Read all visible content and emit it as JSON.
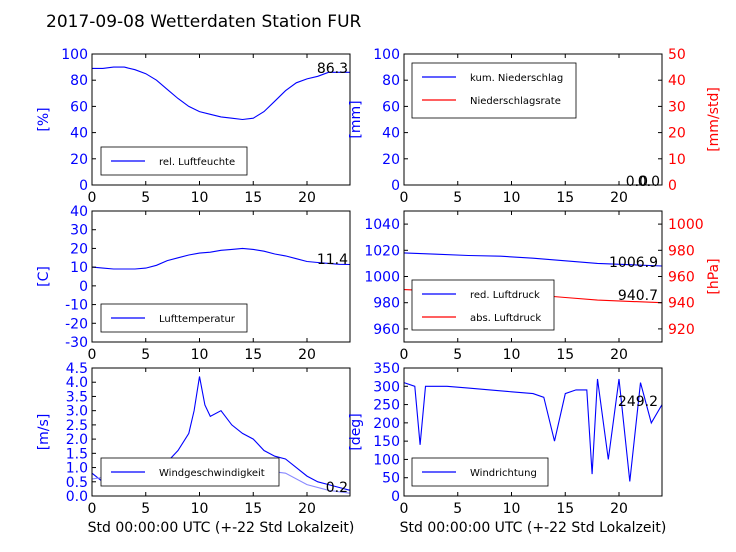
{
  "title": "2017-09-08 Wetterdaten Station FUR",
  "colors": {
    "primary": "#0000ff",
    "secondary": "#ff0000",
    "light": "#8888ff",
    "axis": "#000000"
  },
  "chart_data": [
    {
      "type": "line",
      "xlim": [
        0,
        24
      ],
      "x_ticks": [
        "0",
        "5",
        "10",
        "15",
        "20"
      ],
      "ylabel": "[%]",
      "ylim": [
        0,
        100
      ],
      "y_ticks": [
        "0",
        "20",
        "40",
        "60",
        "80",
        "100"
      ],
      "last_value": "86.3",
      "legend_placement": "lower-left",
      "series": [
        {
          "name": "rel. Luftfeuchte",
          "color": "#0000ff",
          "points": [
            [
              0,
              89
            ],
            [
              1,
              89
            ],
            [
              2,
              90
            ],
            [
              3,
              90
            ],
            [
              4,
              88
            ],
            [
              5,
              85
            ],
            [
              6,
              80
            ],
            [
              7,
              73
            ],
            [
              8,
              66
            ],
            [
              9,
              60
            ],
            [
              10,
              56
            ],
            [
              11,
              54
            ],
            [
              12,
              52
            ],
            [
              13,
              51
            ],
            [
              14,
              50
            ],
            [
              15,
              51
            ],
            [
              16,
              56
            ],
            [
              17,
              64
            ],
            [
              18,
              72
            ],
            [
              19,
              78
            ],
            [
              20,
              81
            ],
            [
              21,
              83
            ],
            [
              22,
              86
            ],
            [
              23,
              86
            ],
            [
              24,
              86
            ]
          ]
        }
      ]
    },
    {
      "type": "line",
      "xlim": [
        0,
        24
      ],
      "x_ticks": [
        "0",
        "5",
        "10",
        "15",
        "20"
      ],
      "ylabel": "[mm]",
      "ylim": [
        0,
        100
      ],
      "y_ticks": [
        "0",
        "20",
        "40",
        "60",
        "80",
        "100"
      ],
      "y2label": "[mm/std]",
      "y2lim": [
        0,
        50
      ],
      "y2_ticks": [
        "0",
        "10",
        "20",
        "30",
        "40",
        "50"
      ],
      "last_values": [
        "0.0",
        "0.0"
      ],
      "legend_placement": "upper-left",
      "series": [
        {
          "name": "kum. Niederschlag",
          "color": "#0000ff",
          "axis": "left",
          "points": [
            [
              0,
              0
            ],
            [
              24,
              0
            ]
          ]
        },
        {
          "name": "Niederschlagsrate",
          "color": "#ff0000",
          "axis": "right",
          "points": [
            [
              0,
              0
            ],
            [
              24,
              0
            ]
          ]
        }
      ]
    },
    {
      "type": "line",
      "xlim": [
        0,
        24
      ],
      "x_ticks": [
        "0",
        "5",
        "10",
        "15",
        "20"
      ],
      "ylabel": "[C]",
      "ylim": [
        -30,
        40
      ],
      "y_ticks": [
        "-30",
        "-20",
        "-10",
        "0",
        "10",
        "20",
        "30",
        "40"
      ],
      "last_value": "11.4",
      "legend_placement": "lower-left",
      "series": [
        {
          "name": "Lufttemperatur",
          "color": "#0000ff",
          "points": [
            [
              0,
              10
            ],
            [
              1,
              9.5
            ],
            [
              2,
              9
            ],
            [
              3,
              9
            ],
            [
              4,
              9
            ],
            [
              5,
              9.5
            ],
            [
              6,
              11
            ],
            [
              7,
              13.5
            ],
            [
              8,
              15
            ],
            [
              9,
              16.5
            ],
            [
              10,
              17.5
            ],
            [
              11,
              18
            ],
            [
              12,
              19
            ],
            [
              13,
              19.5
            ],
            [
              14,
              20
            ],
            [
              15,
              19.5
            ],
            [
              16,
              18.5
            ],
            [
              17,
              17
            ],
            [
              18,
              16
            ],
            [
              19,
              14.5
            ],
            [
              20,
              13
            ],
            [
              21,
              12.5
            ],
            [
              22,
              12
            ],
            [
              23,
              11.5
            ],
            [
              24,
              11.4
            ]
          ]
        }
      ]
    },
    {
      "type": "line",
      "xlim": [
        0,
        24
      ],
      "x_ticks": [
        "0",
        "5",
        "10",
        "15",
        "20"
      ],
      "ylim": [
        950,
        1050
      ],
      "y_ticks": [
        "960",
        "980",
        "1000",
        "1020",
        "1040"
      ],
      "y2label": "[hPa]",
      "y2lim": [
        910,
        1010
      ],
      "y2_ticks": [
        "920",
        "940",
        "960",
        "980",
        "1000"
      ],
      "last_values": [
        "1006.9",
        "940.7"
      ],
      "legend_placement": "lower-left",
      "series": [
        {
          "name": "red. Luftdruck",
          "color": "#0000ff",
          "axis": "left",
          "points": [
            [
              0,
              1018
            ],
            [
              3,
              1017
            ],
            [
              6,
              1016
            ],
            [
              9,
              1015.5
            ],
            [
              12,
              1014
            ],
            [
              15,
              1012
            ],
            [
              18,
              1010
            ],
            [
              21,
              1009
            ],
            [
              24,
              1008
            ]
          ]
        },
        {
          "name": "abs. Luftdruck",
          "color": "#ff0000",
          "axis": "left",
          "points": [
            [
              0,
              990
            ],
            [
              3,
              989
            ],
            [
              6,
              988
            ],
            [
              9,
              987.5
            ],
            [
              12,
              986
            ],
            [
              15,
              984
            ],
            [
              18,
              982
            ],
            [
              21,
              981
            ],
            [
              24,
              980
            ]
          ]
        }
      ]
    },
    {
      "type": "line",
      "xlim": [
        0,
        24
      ],
      "x_ticks": [
        "0",
        "5",
        "10",
        "15",
        "20"
      ],
      "xlabel": "Std 00:00:00 UTC (+-22 Std Lokalzeit)",
      "ylabel": "[m/s]",
      "ylim": [
        0,
        4.5
      ],
      "y_ticks": [
        "0.0",
        "0.5",
        "1.0",
        "1.5",
        "2.0",
        "2.5",
        "3.0",
        "3.5",
        "4.0",
        "4.5"
      ],
      "last_value": "0.2",
      "legend_placement": "lower-center",
      "series": [
        {
          "name": "Windgeschwindigkeit",
          "color": "#0000ff",
          "points": [
            [
              0,
              0.8
            ],
            [
              1,
              0.5
            ],
            [
              2,
              1.0
            ],
            [
              3,
              1.2
            ],
            [
              4,
              1.0
            ],
            [
              5,
              0.6
            ],
            [
              6,
              0.9
            ],
            [
              7,
              1.2
            ],
            [
              8,
              1.6
            ],
            [
              9,
              2.2
            ],
            [
              9.5,
              3.0
            ],
            [
              10,
              4.2
            ],
            [
              10.5,
              3.2
            ],
            [
              11,
              2.8
            ],
            [
              12,
              3.0
            ],
            [
              13,
              2.5
            ],
            [
              14,
              2.2
            ],
            [
              15,
              2.0
            ],
            [
              16,
              1.6
            ],
            [
              17,
              1.4
            ],
            [
              18,
              1.3
            ],
            [
              19,
              1.0
            ],
            [
              20,
              0.7
            ],
            [
              21,
              0.5
            ],
            [
              22,
              0.4
            ],
            [
              23,
              0.3
            ],
            [
              24,
              0.2
            ]
          ]
        },
        {
          "name": "",
          "color": "#8888ff",
          "points": [
            [
              0,
              0.6
            ],
            [
              2,
              0.7
            ],
            [
              4,
              0.6
            ],
            [
              6,
              0.7
            ],
            [
              8,
              1.0
            ],
            [
              10,
              1.3
            ],
            [
              12,
              1.2
            ],
            [
              14,
              1.0
            ],
            [
              16,
              0.9
            ],
            [
              18,
              0.8
            ],
            [
              20,
              0.4
            ],
            [
              22,
              0.2
            ],
            [
              24,
              0.1
            ]
          ]
        }
      ]
    },
    {
      "type": "line",
      "xlim": [
        0,
        24
      ],
      "x_ticks": [
        "0",
        "5",
        "10",
        "15",
        "20"
      ],
      "xlabel": "Std 00:00:00 UTC (+-22 Std Lokalzeit)",
      "ylabel": "[deg]",
      "ylim": [
        0,
        350
      ],
      "y_ticks": [
        "0",
        "50",
        "100",
        "150",
        "200",
        "250",
        "300",
        "350"
      ],
      "last_value": "249.2",
      "legend_placement": "lower-left",
      "series": [
        {
          "name": "Windrichtung",
          "color": "#0000ff",
          "points": [
            [
              0,
              310
            ],
            [
              1,
              300
            ],
            [
              1.5,
              140
            ],
            [
              2,
              300
            ],
            [
              4,
              300
            ],
            [
              6,
              295
            ],
            [
              8,
              290
            ],
            [
              10,
              285
            ],
            [
              12,
              280
            ],
            [
              13,
              270
            ],
            [
              14,
              150
            ],
            [
              15,
              280
            ],
            [
              16,
              290
            ],
            [
              17,
              290
            ],
            [
              17.5,
              60
            ],
            [
              18,
              320
            ],
            [
              19,
              100
            ],
            [
              20,
              320
            ],
            [
              21,
              40
            ],
            [
              22,
              310
            ],
            [
              23,
              200
            ],
            [
              24,
              250
            ]
          ]
        }
      ]
    }
  ]
}
